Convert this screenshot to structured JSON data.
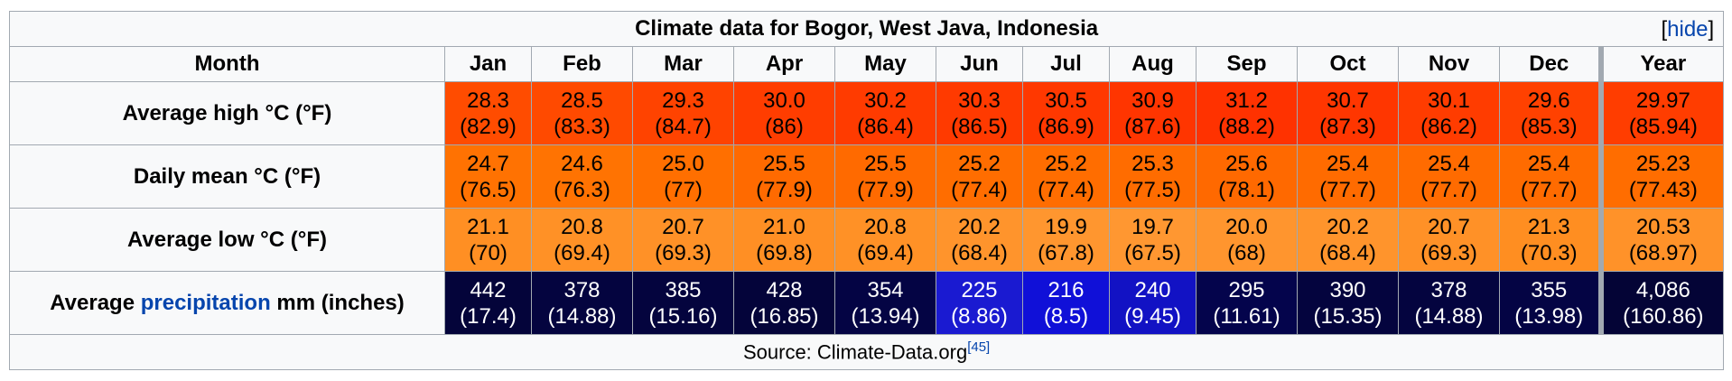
{
  "title": "Climate data for Bogor, West Java, Indonesia",
  "hide_link": {
    "open": "[",
    "label": "hide",
    "close": "]"
  },
  "header": {
    "month_label": "Month",
    "months": [
      "Jan",
      "Feb",
      "Mar",
      "Apr",
      "May",
      "Jun",
      "Jul",
      "Aug",
      "Sep",
      "Oct",
      "Nov",
      "Dec"
    ],
    "year_label": "Year"
  },
  "rows": [
    {
      "label": "Average high °C (°F)",
      "cells": [
        {
          "c": "28.3",
          "f": "(82.9)",
          "bg": "#ff4c00",
          "fg": "#000000"
        },
        {
          "c": "28.5",
          "f": "(83.3)",
          "bg": "#ff4a00",
          "fg": "#000000"
        },
        {
          "c": "29.3",
          "f": "(84.7)",
          "bg": "#ff4300",
          "fg": "#000000"
        },
        {
          "c": "30.0",
          "f": "(86)",
          "bg": "#ff3d00",
          "fg": "#000000"
        },
        {
          "c": "30.2",
          "f": "(86.4)",
          "bg": "#ff3b00",
          "fg": "#000000"
        },
        {
          "c": "30.3",
          "f": "(86.5)",
          "bg": "#ff3a00",
          "fg": "#000000"
        },
        {
          "c": "30.5",
          "f": "(86.9)",
          "bg": "#ff3800",
          "fg": "#000000"
        },
        {
          "c": "30.9",
          "f": "(87.6)",
          "bg": "#ff3500",
          "fg": "#000000"
        },
        {
          "c": "31.2",
          "f": "(88.2)",
          "bg": "#ff3200",
          "fg": "#000000"
        },
        {
          "c": "30.7",
          "f": "(87.3)",
          "bg": "#ff3600",
          "fg": "#000000"
        },
        {
          "c": "30.1",
          "f": "(86.2)",
          "bg": "#ff3c00",
          "fg": "#000000"
        },
        {
          "c": "29.6",
          "f": "(85.3)",
          "bg": "#ff4100",
          "fg": "#000000"
        },
        {
          "c": "29.97",
          "f": "(85.94)",
          "bg": "#ff3d00",
          "fg": "#000000"
        }
      ]
    },
    {
      "label": "Daily mean °C (°F)",
      "cells": [
        {
          "c": "24.7",
          "f": "(76.5)",
          "bg": "#ff7202",
          "fg": "#000000"
        },
        {
          "c": "24.6",
          "f": "(76.3)",
          "bg": "#ff7302",
          "fg": "#000000"
        },
        {
          "c": "25.0",
          "f": "(77)",
          "bg": "#ff6f00",
          "fg": "#000000"
        },
        {
          "c": "25.5",
          "f": "(77.9)",
          "bg": "#ff6a00",
          "fg": "#000000"
        },
        {
          "c": "25.5",
          "f": "(77.9)",
          "bg": "#ff6a00",
          "fg": "#000000"
        },
        {
          "c": "25.2",
          "f": "(77.4)",
          "bg": "#ff6d00",
          "fg": "#000000"
        },
        {
          "c": "25.2",
          "f": "(77.4)",
          "bg": "#ff6d00",
          "fg": "#000000"
        },
        {
          "c": "25.3",
          "f": "(77.5)",
          "bg": "#ff6c00",
          "fg": "#000000"
        },
        {
          "c": "25.6",
          "f": "(78.1)",
          "bg": "#ff6900",
          "fg": "#000000"
        },
        {
          "c": "25.4",
          "f": "(77.7)",
          "bg": "#ff6b00",
          "fg": "#000000"
        },
        {
          "c": "25.4",
          "f": "(77.7)",
          "bg": "#ff6b00",
          "fg": "#000000"
        },
        {
          "c": "25.4",
          "f": "(77.7)",
          "bg": "#ff6b00",
          "fg": "#000000"
        },
        {
          "c": "25.23",
          "f": "(77.43)",
          "bg": "#ff6d00",
          "fg": "#000000"
        }
      ]
    },
    {
      "label": "Average low °C (°F)",
      "cells": [
        {
          "c": "21.1",
          "f": "(70)",
          "bg": "#ff8f23",
          "fg": "#000000"
        },
        {
          "c": "20.8",
          "f": "(69.4)",
          "bg": "#ff9126",
          "fg": "#000000"
        },
        {
          "c": "20.7",
          "f": "(69.3)",
          "bg": "#ff9127",
          "fg": "#000000"
        },
        {
          "c": "21.0",
          "f": "(69.8)",
          "bg": "#ff8f24",
          "fg": "#000000"
        },
        {
          "c": "20.8",
          "f": "(69.4)",
          "bg": "#ff9126",
          "fg": "#000000"
        },
        {
          "c": "20.2",
          "f": "(68.4)",
          "bg": "#ff942c",
          "fg": "#000000"
        },
        {
          "c": "19.9",
          "f": "(67.8)",
          "bg": "#ff962f",
          "fg": "#000000"
        },
        {
          "c": "19.7",
          "f": "(67.5)",
          "bg": "#ff9731",
          "fg": "#000000"
        },
        {
          "c": "20.0",
          "f": "(68)",
          "bg": "#ff952e",
          "fg": "#000000"
        },
        {
          "c": "20.2",
          "f": "(68.4)",
          "bg": "#ff942c",
          "fg": "#000000"
        },
        {
          "c": "20.7",
          "f": "(69.3)",
          "bg": "#ff9127",
          "fg": "#000000"
        },
        {
          "c": "21.3",
          "f": "(70.3)",
          "bg": "#ff8e21",
          "fg": "#000000"
        },
        {
          "c": "20.53",
          "f": "(68.97)",
          "bg": "#ff9229",
          "fg": "#000000"
        }
      ]
    },
    {
      "label_before": "Average ",
      "label_link": "precipitation",
      "label_after": " mm (inches)",
      "cells": [
        {
          "c": "442",
          "f": "(17.4)",
          "bg": "#04043a",
          "fg": "#ffffff"
        },
        {
          "c": "378",
          "f": "(14.88)",
          "bg": "#04043f",
          "fg": "#ffffff"
        },
        {
          "c": "385",
          "f": "(15.16)",
          "bg": "#04043e",
          "fg": "#ffffff"
        },
        {
          "c": "428",
          "f": "(16.85)",
          "bg": "#04043a",
          "fg": "#ffffff"
        },
        {
          "c": "354",
          "f": "(13.94)",
          "bg": "#040444",
          "fg": "#ffffff"
        },
        {
          "c": "225",
          "f": "(8.86)",
          "bg": "#1a1ad1",
          "fg": "#ffffff"
        },
        {
          "c": "216",
          "f": "(8.5)",
          "bg": "#1010d8",
          "fg": "#ffffff"
        },
        {
          "c": "240",
          "f": "(9.45)",
          "bg": "#1212c4",
          "fg": "#ffffff"
        },
        {
          "c": "295",
          "f": "(11.61)",
          "bg": "#04044c",
          "fg": "#ffffff"
        },
        {
          "c": "390",
          "f": "(15.35)",
          "bg": "#04043e",
          "fg": "#ffffff"
        },
        {
          "c": "378",
          "f": "(14.88)",
          "bg": "#04043f",
          "fg": "#ffffff"
        },
        {
          "c": "355",
          "f": "(13.98)",
          "bg": "#040444",
          "fg": "#ffffff"
        },
        {
          "c": "4,086",
          "f": "(160.86)",
          "bg": "#040436",
          "fg": "#ffffff"
        }
      ]
    }
  ],
  "source": {
    "text": "Source: Climate-Data.org",
    "ref": "[45]"
  }
}
